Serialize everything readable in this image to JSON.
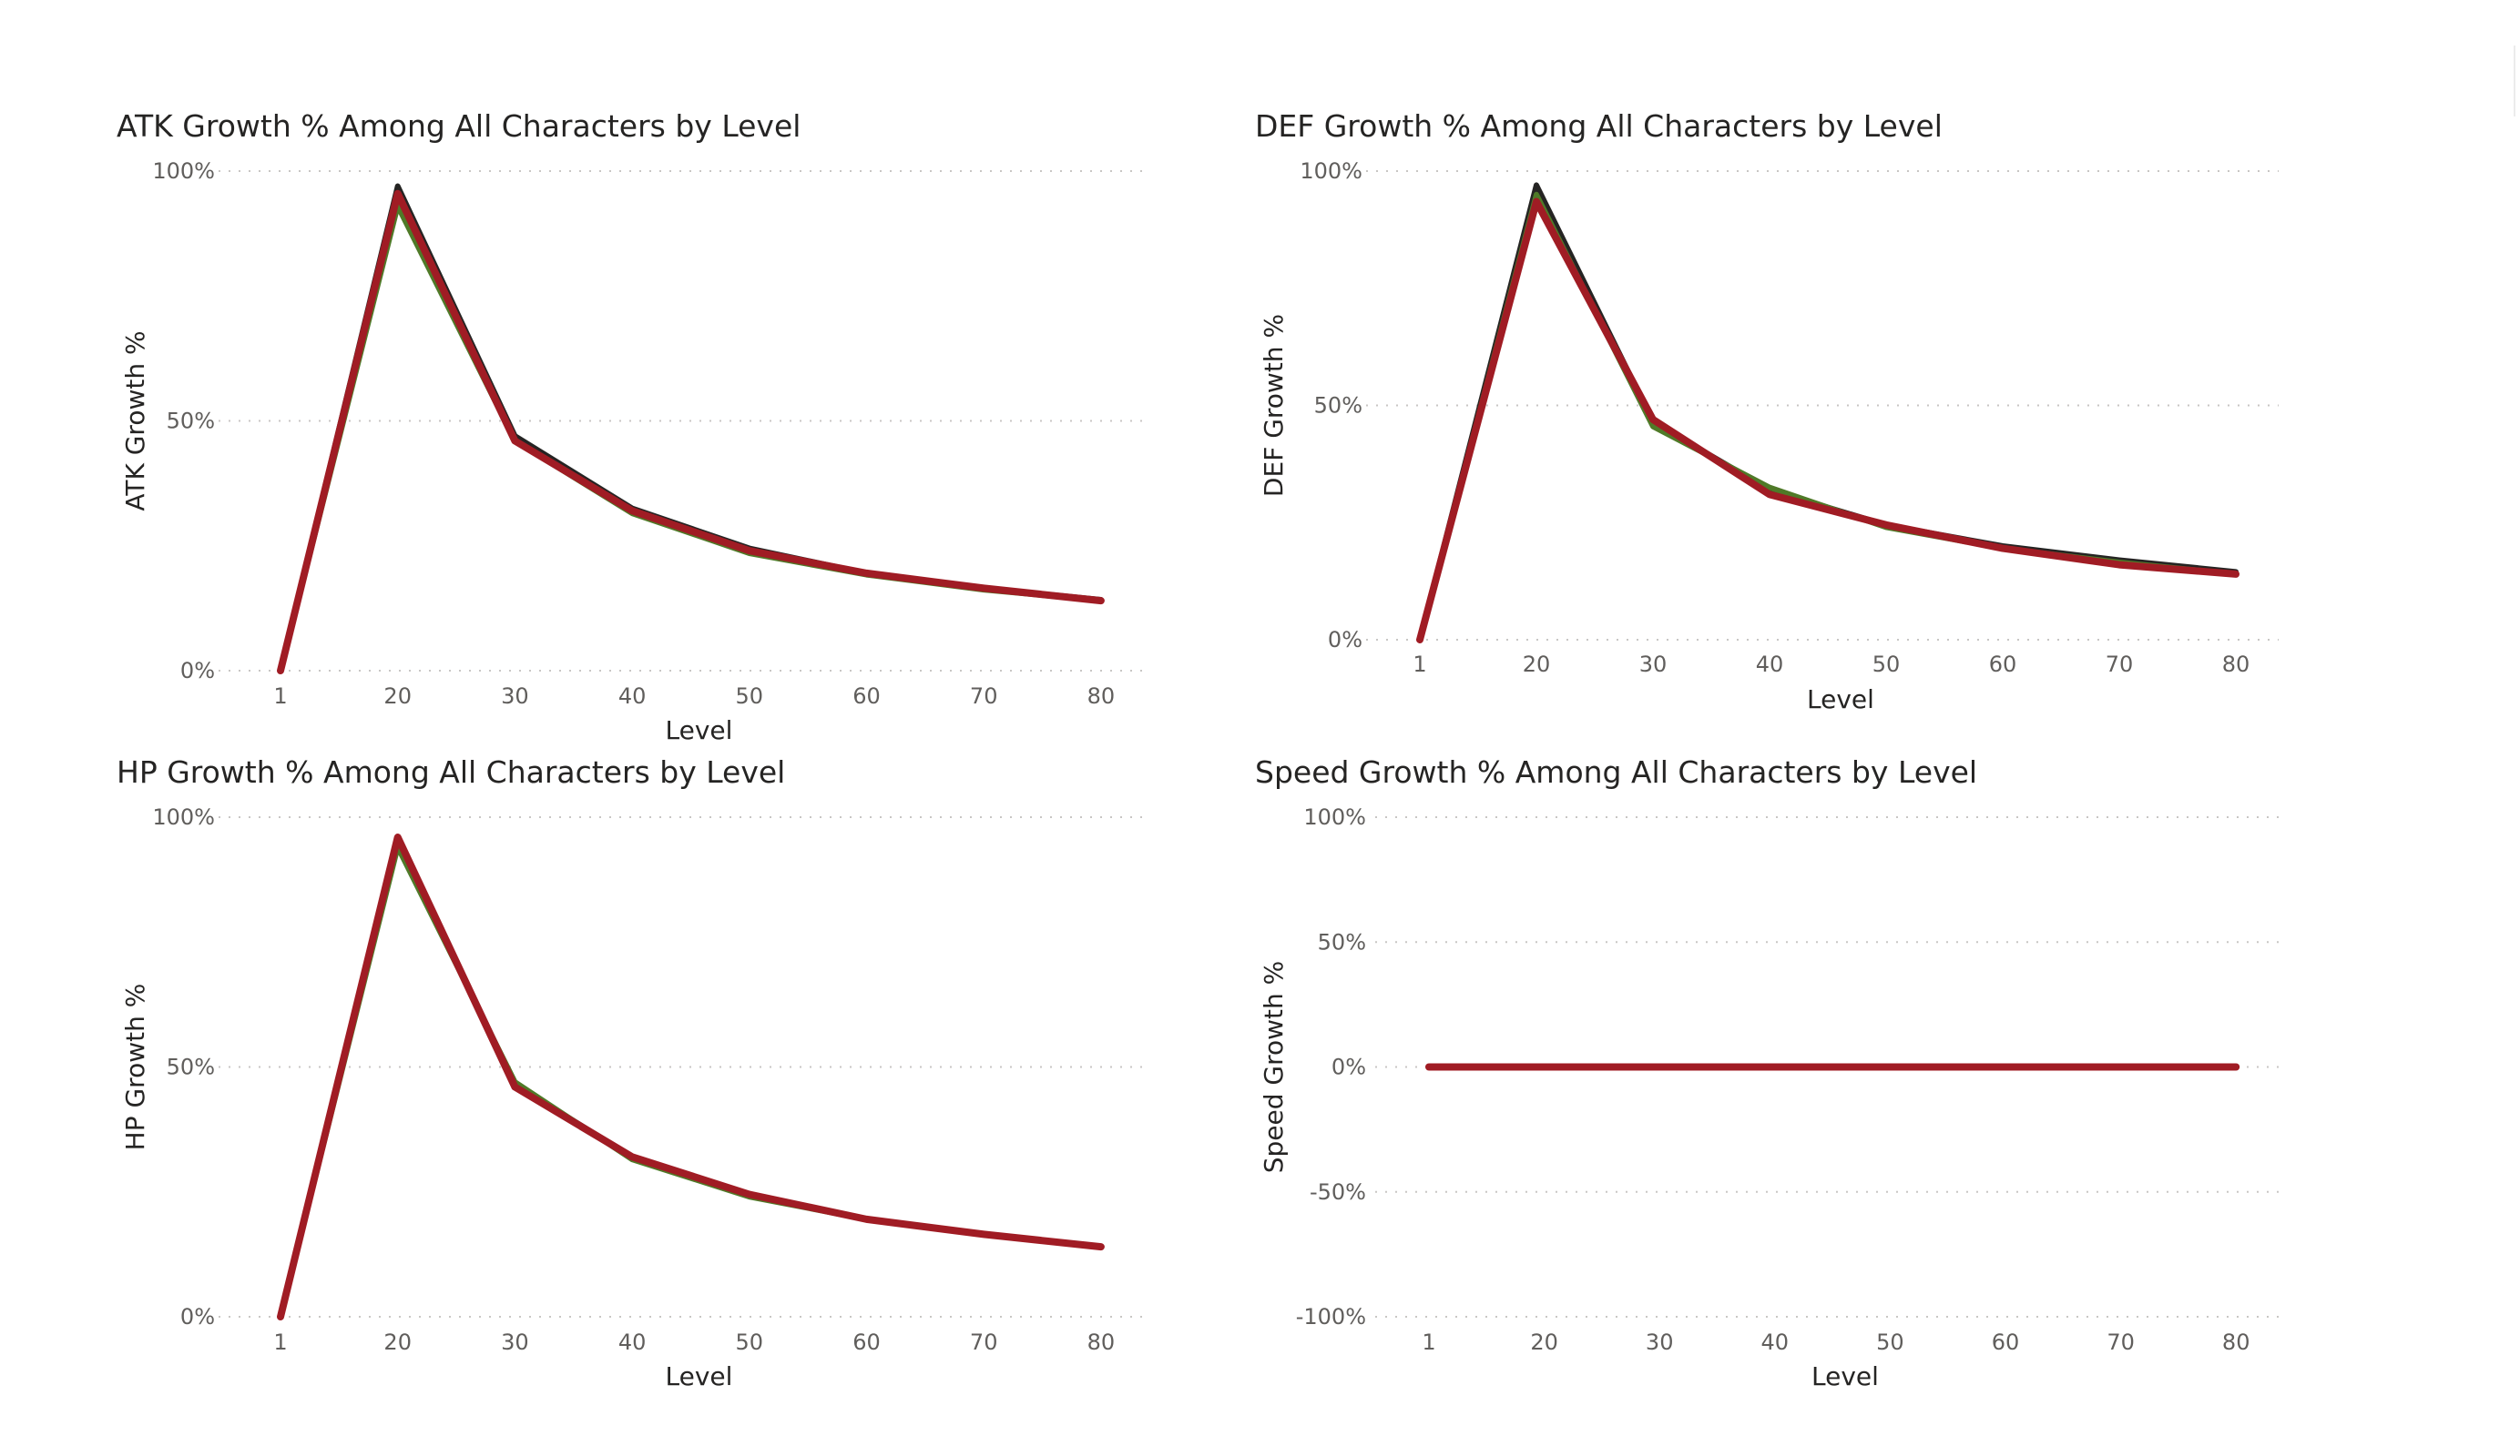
{
  "chart_data": [
    {
      "type": "line",
      "title": "ATK Growth % Among All Characters by Level",
      "xlabel": "Level",
      "ylabel": "ATK Growth %",
      "categories": [
        "1",
        "20",
        "30",
        "40",
        "50",
        "60",
        "70",
        "80"
      ],
      "y_ticks": [
        "0%",
        "50%",
        "100%"
      ],
      "ylim": [
        0,
        100
      ],
      "grid": true,
      "series": [
        {
          "color": "#252423",
          "values": [
            0,
            97,
            47,
            32.5,
            24.5,
            19.5,
            16.5,
            14.2
          ]
        },
        {
          "color": "#4f7a28",
          "values": [
            0,
            93,
            46,
            31.5,
            23.5,
            19.2,
            16.2,
            14
          ]
        },
        {
          "color": "#a01c24",
          "values": [
            0,
            95.5,
            46,
            32,
            24,
            19.5,
            16.5,
            14
          ]
        }
      ]
    },
    {
      "type": "line",
      "title": "DEF Growth % Among All Characters by Level",
      "xlabel": "Level",
      "ylabel": "DEF Growth %",
      "categories": [
        "1",
        "20",
        "30",
        "40",
        "50",
        "60",
        "70",
        "80"
      ],
      "y_ticks": [
        "0%",
        "50%",
        "100%"
      ],
      "ylim": [
        0,
        100
      ],
      "grid": true,
      "series": [
        {
          "color": "#252423",
          "values": [
            0,
            97,
            46.5,
            32,
            24.5,
            20,
            17,
            14.5
          ]
        },
        {
          "color": "#4f7a28",
          "values": [
            0,
            95,
            45.5,
            32.5,
            24,
            19.5,
            16.5,
            14
          ]
        },
        {
          "color": "#a01c24",
          "values": [
            0,
            93.5,
            47,
            31,
            24.5,
            19.5,
            16,
            14
          ]
        }
      ]
    },
    {
      "type": "line",
      "title": "HP Growth % Among All Characters by Level",
      "xlabel": "Level",
      "ylabel": "HP Growth %",
      "categories": [
        "1",
        "20",
        "30",
        "40",
        "50",
        "60",
        "70",
        "80"
      ],
      "y_ticks": [
        "0%",
        "50%",
        "100%"
      ],
      "ylim": [
        0,
        100
      ],
      "grid": true,
      "series": [
        {
          "color": "#252423",
          "values": [
            0,
            96,
            46.5,
            32,
            24.5,
            19.5,
            16.5,
            14
          ]
        },
        {
          "color": "#4f7a28",
          "values": [
            0,
            94,
            47,
            31.5,
            24,
            19.5,
            16.5,
            14
          ]
        },
        {
          "color": "#a01c24",
          "values": [
            0,
            96,
            46,
            32,
            24.5,
            19.5,
            16.5,
            14
          ]
        }
      ]
    },
    {
      "type": "line",
      "title": "Speed Growth % Among All Characters by Level",
      "xlabel": "Level",
      "ylabel": "Speed Growth %",
      "categories": [
        "1",
        "20",
        "30",
        "40",
        "50",
        "60",
        "70",
        "80"
      ],
      "y_ticks": [
        "-100%",
        "-50%",
        "0%",
        "50%",
        "100%"
      ],
      "ylim": [
        -100,
        100
      ],
      "grid": true,
      "series": [
        {
          "color": "#252423",
          "values": [
            0,
            0,
            0,
            0,
            0,
            0,
            0,
            0
          ]
        },
        {
          "color": "#4f7a28",
          "values": [
            0,
            0,
            0,
            0,
            0,
            0,
            0,
            0
          ]
        },
        {
          "color": "#a01c24",
          "values": [
            0,
            0,
            0,
            0,
            0,
            0,
            0,
            0
          ]
        }
      ]
    }
  ]
}
